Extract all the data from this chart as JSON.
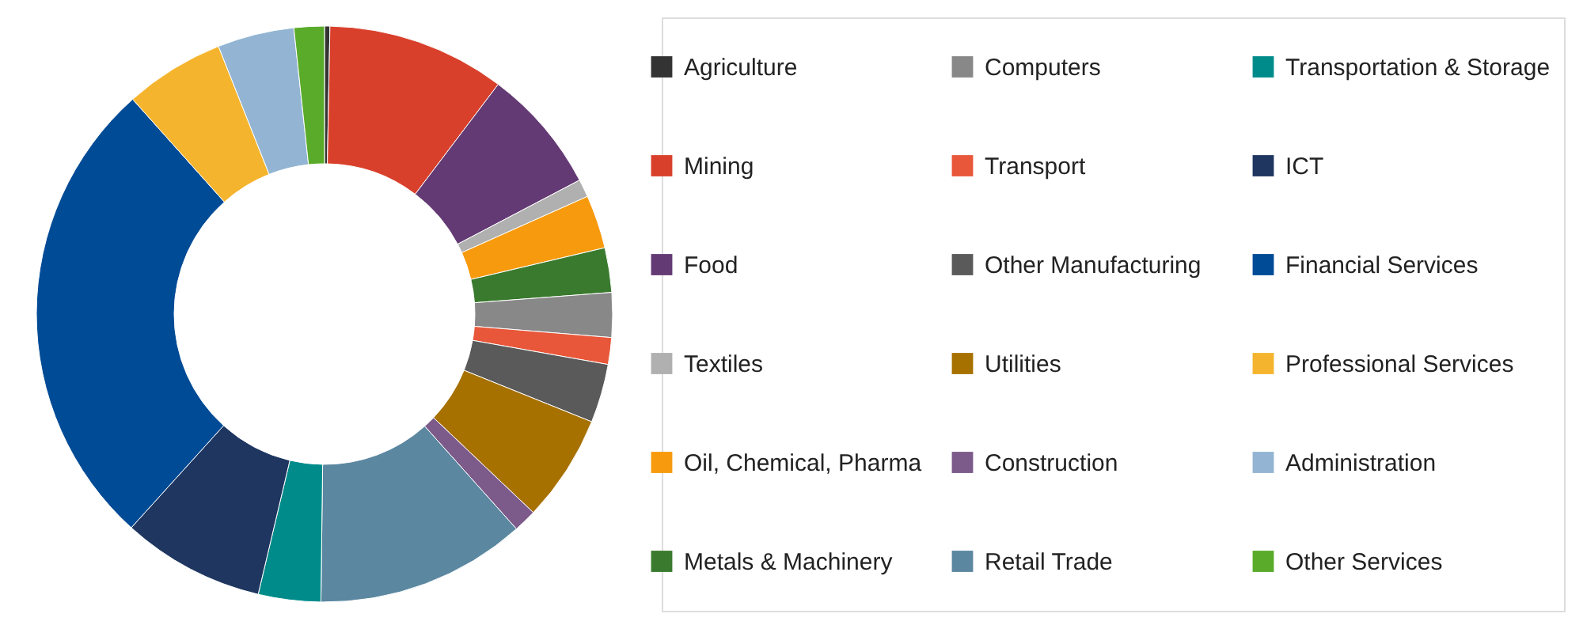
{
  "chart_data": {
    "type": "donut",
    "legend": "right",
    "categories": [
      "Agriculture",
      "Mining",
      "Food",
      "Textiles",
      "Oil, Chemical, Pharma",
      "Metals & Machinery",
      "Computers",
      "Transport",
      "Other Manufacturing",
      "Utilities",
      "Construction",
      "Retail Trade",
      "Transportation & Storage",
      "ICT",
      "Financial Services",
      "Professional Services",
      "Administration",
      "Other Services"
    ],
    "values": [
      0.3,
      10,
      7,
      1,
      3,
      2.5,
      2.5,
      1.5,
      3.3,
      6,
      1.3,
      11.8,
      3.5,
      8,
      26.7,
      5.6,
      4.3,
      1.7
    ],
    "colors": [
      "#333333",
      "#d9402b",
      "#643a74",
      "#b0b0b0",
      "#f79a0e",
      "#3a7a2e",
      "#888888",
      "#e8573a",
      "#5a5a5a",
      "#a77100",
      "#7c5a8a",
      "#5b87a0",
      "#008b8b",
      "#1e3660",
      "#004b96",
      "#f5b42d",
      "#93b5d3",
      "#5aab2a"
    ]
  }
}
